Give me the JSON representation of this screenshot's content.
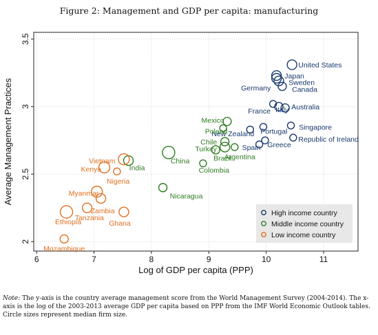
{
  "figure_title": "Figure 2: Management and GDP per capita: manufacturing",
  "note": {
    "label": "Note:",
    "text": "The y-axis is the country average management score from the World Management Survey (2004-2014). The x-axis is the log of the 2003-2013 average GDP per capita based on PPP from the IMF World Economic Outlook tables. Circle sizes represent median firm size."
  },
  "colors": {
    "high": "#1a3a6e",
    "middle": "#2e7d22",
    "low": "#e07020",
    "grid": "#c8c8c8",
    "legend_bg": "#e8e8e8"
  },
  "chart_data": {
    "type": "scatter",
    "title": "",
    "xlabel": "Log of GDP per capita (PPP)",
    "ylabel": "Average Management Practices",
    "xlim": [
      5.95,
      11.6
    ],
    "ylim": [
      1.93,
      3.55
    ],
    "xticks": [
      6,
      7,
      8,
      9,
      10,
      11
    ],
    "yticks": [
      2,
      2.5,
      3,
      3.5
    ],
    "ytick_labels": [
      "2",
      "2.5",
      "3",
      "3.5"
    ],
    "grid": true,
    "legend_position": "bottom-right",
    "series": [
      {
        "name": "High income country",
        "key": "high"
      },
      {
        "name": "Middle income country",
        "key": "middle"
      },
      {
        "name": "Low income country",
        "key": "low"
      }
    ],
    "points": [
      {
        "label": "United States",
        "group": "high",
        "x": 10.45,
        "y": 3.31,
        "size": 7,
        "lx": 10.56,
        "ly": 3.31,
        "anchor": "start"
      },
      {
        "label": "Japan",
        "group": "high",
        "x": 10.18,
        "y": 3.23,
        "size": 7,
        "lx": 10.32,
        "ly": 3.23,
        "anchor": "start"
      },
      {
        "label": "Sweden",
        "group": "high",
        "x": 10.22,
        "y": 3.19,
        "size": 7,
        "lx": 10.39,
        "ly": 3.18,
        "anchor": "start"
      },
      {
        "label": "Canada",
        "group": "high",
        "x": 10.28,
        "y": 3.15,
        "size": 6,
        "lx": 10.45,
        "ly": 3.13,
        "anchor": "start"
      },
      {
        "label": "Germany",
        "group": "high",
        "x": 10.18,
        "y": 3.21,
        "size": 7,
        "lx": 10.08,
        "ly": 3.14,
        "anchor": "end"
      },
      {
        "label": "Australia",
        "group": "high",
        "x": 10.33,
        "y": 2.99,
        "size": 6,
        "lx": 10.44,
        "ly": 3.0,
        "anchor": "start"
      },
      {
        "label": "Italy",
        "group": "high",
        "x": 10.22,
        "y": 3.0,
        "size": 6,
        "lx": 10.16,
        "ly": 2.98,
        "anchor": "start"
      },
      {
        "label": "France",
        "group": "high",
        "x": 10.12,
        "y": 3.02,
        "size": 5,
        "lx": 9.88,
        "ly": 2.97,
        "anchor": "middle"
      },
      {
        "label": "Singapore",
        "group": "high",
        "x": 10.43,
        "y": 2.86,
        "size": 5,
        "lx": 10.57,
        "ly": 2.85,
        "anchor": "start"
      },
      {
        "label": "Portugal",
        "group": "high",
        "x": 9.95,
        "y": 2.85,
        "size": 5,
        "lx": 9.9,
        "ly": 2.82,
        "anchor": "start"
      },
      {
        "label": "New Zealand",
        "group": "high",
        "x": 9.72,
        "y": 2.83,
        "size": 5,
        "lx": 9.42,
        "ly": 2.8,
        "anchor": "middle"
      },
      {
        "label": "Republic of Ireland",
        "group": "high",
        "x": 10.47,
        "y": 2.77,
        "size": 5,
        "lx": 10.56,
        "ly": 2.76,
        "anchor": "start"
      },
      {
        "label": "Greece",
        "group": "high",
        "x": 9.98,
        "y": 2.75,
        "size": 5,
        "lx": 10.02,
        "ly": 2.72,
        "anchor": "start"
      },
      {
        "label": "Spain",
        "group": "high",
        "x": 9.88,
        "y": 2.72,
        "size": 5,
        "lx": 9.58,
        "ly": 2.7,
        "anchor": "start"
      },
      {
        "label": "Mexico",
        "group": "middle",
        "x": 9.32,
        "y": 2.89,
        "size": 6,
        "lx": 9.27,
        "ly": 2.9,
        "anchor": "end"
      },
      {
        "label": "Poland",
        "group": "middle",
        "x": 9.25,
        "y": 2.84,
        "size": 5,
        "lx": 9.13,
        "ly": 2.82,
        "anchor": "middle"
      },
      {
        "label": "Chile",
        "group": "middle",
        "x": 9.28,
        "y": 2.74,
        "size": 6,
        "lx": 9.0,
        "ly": 2.74,
        "anchor": "middle"
      },
      {
        "label": "Turkey",
        "group": "middle",
        "x": 9.12,
        "y": 2.68,
        "size": 6,
        "lx": 8.95,
        "ly": 2.69,
        "anchor": "middle"
      },
      {
        "label": "Brazil",
        "group": "middle",
        "x": 9.28,
        "y": 2.7,
        "size": 7,
        "lx": 9.24,
        "ly": 2.62,
        "anchor": "middle"
      },
      {
        "label": "Argentina",
        "group": "middle",
        "x": 9.45,
        "y": 2.7,
        "size": 5,
        "lx": 9.54,
        "ly": 2.63,
        "anchor": "middle"
      },
      {
        "label": "China",
        "group": "middle",
        "x": 8.3,
        "y": 2.66,
        "size": 9,
        "lx": 8.5,
        "ly": 2.6,
        "anchor": "middle"
      },
      {
        "label": "Colombia",
        "group": "middle",
        "x": 8.9,
        "y": 2.58,
        "size": 5,
        "lx": 9.09,
        "ly": 2.53,
        "anchor": "middle"
      },
      {
        "label": "India",
        "group": "middle",
        "x": 7.6,
        "y": 2.6,
        "size": 7,
        "lx": 7.75,
        "ly": 2.55,
        "anchor": "middle"
      },
      {
        "label": "Nicaragua",
        "group": "middle",
        "x": 8.2,
        "y": 2.4,
        "size": 6,
        "lx": 8.32,
        "ly": 2.34,
        "anchor": "start"
      },
      {
        "label": "Vietnam",
        "group": "low",
        "x": 7.52,
        "y": 2.61,
        "size": 8,
        "lx": 7.14,
        "ly": 2.6,
        "anchor": "middle"
      },
      {
        "label": "Kenya",
        "group": "low",
        "x": 7.18,
        "y": 2.55,
        "size": 8,
        "lx": 6.95,
        "ly": 2.54,
        "anchor": "middle"
      },
      {
        "label": "Nigeria",
        "group": "low",
        "x": 7.4,
        "y": 2.52,
        "size": 5,
        "lx": 7.42,
        "ly": 2.45,
        "anchor": "middle"
      },
      {
        "label": "Myanmar",
        "group": "low",
        "x": 7.05,
        "y": 2.37,
        "size": 8,
        "lx": 6.82,
        "ly": 2.36,
        "anchor": "middle"
      },
      {
        "label": "Zambia",
        "group": "low",
        "x": 7.12,
        "y": 2.32,
        "size": 7,
        "lx": 7.15,
        "ly": 2.23,
        "anchor": "middle"
      },
      {
        "label": "Tanzania",
        "group": "low",
        "x": 6.88,
        "y": 2.25,
        "size": 7,
        "lx": 6.92,
        "ly": 2.18,
        "anchor": "middle"
      },
      {
        "label": "Ethiopia",
        "group": "low",
        "x": 6.52,
        "y": 2.22,
        "size": 9,
        "lx": 6.55,
        "ly": 2.15,
        "anchor": "middle"
      },
      {
        "label": "Ghana",
        "group": "low",
        "x": 7.52,
        "y": 2.22,
        "size": 7,
        "lx": 7.45,
        "ly": 2.14,
        "anchor": "middle"
      },
      {
        "label": "Mozambique",
        "group": "low",
        "x": 6.48,
        "y": 2.02,
        "size": 6,
        "lx": 6.48,
        "ly": 1.95,
        "anchor": "middle"
      }
    ]
  }
}
